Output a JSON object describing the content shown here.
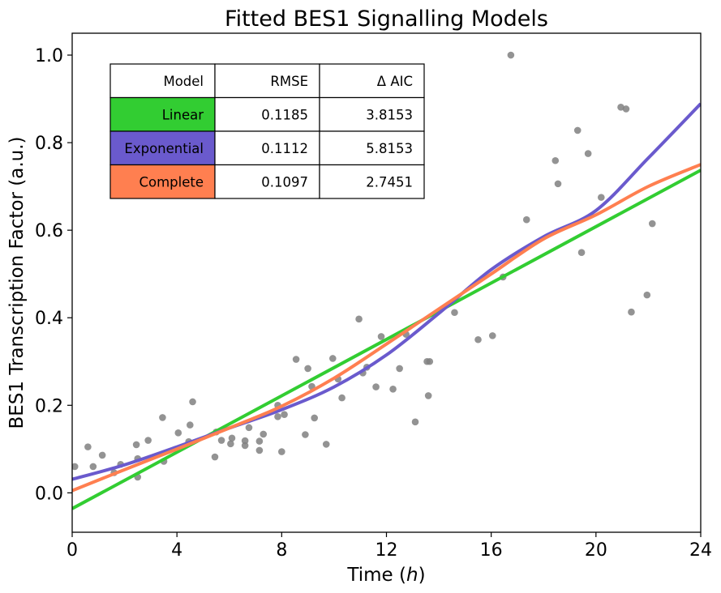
{
  "chart_data": {
    "type": "scatter",
    "title": "Fitted BES1 Signalling Models",
    "xlabel_main": "Time (",
    "xlabel_italic": "h",
    "xlabel_end": ")",
    "ylabel": "BES1 Transcription Factor (a.u.)",
    "xlim": [
      0,
      24
    ],
    "ylim": [
      -0.09,
      1.05
    ],
    "xticks": [
      0,
      4,
      8,
      12,
      16,
      20,
      24
    ],
    "yticks": [
      0.0,
      0.2,
      0.4,
      0.6,
      0.8,
      1.0
    ],
    "ytick_labels": [
      "0.0",
      "0.2",
      "0.4",
      "0.6",
      "0.8",
      "1.0"
    ],
    "grid": false,
    "colors": {
      "points": "#808080",
      "linear": "#32cd32",
      "exponential": "#6a5acd",
      "complete": "#ff7f50"
    },
    "scatter_points": {
      "x": [
        0.1,
        0.6,
        0.8,
        1.15,
        1.6,
        1.85,
        2.5,
        2.45,
        2.5,
        2.9,
        3.45,
        3.5,
        4.05,
        4.45,
        4.5,
        4.6,
        5.45,
        5.5,
        5.7,
        6.05,
        6.1,
        6.6,
        6.6,
        6.75,
        7.15,
        7.15,
        7.3,
        7.85,
        7.85,
        8.0,
        8.1,
        8.55,
        8.9,
        9.0,
        9.15,
        9.25,
        9.7,
        9.95,
        10.15,
        10.3,
        10.95,
        11.1,
        11.25,
        11.6,
        11.8,
        12.25,
        12.5,
        12.75,
        13.1,
        13.55,
        13.6,
        13.65,
        14.6,
        15.5,
        16.05,
        16.45,
        16.75,
        17.35,
        18.45,
        18.55,
        19.3,
        19.45,
        19.7,
        20.2,
        20.95,
        21.15,
        21.35,
        21.95,
        22.15
      ],
      "y": [
        0.06,
        0.105,
        0.06,
        0.086,
        0.046,
        0.065,
        0.036,
        0.11,
        0.078,
        0.12,
        0.172,
        0.072,
        0.137,
        0.117,
        0.155,
        0.208,
        0.082,
        0.139,
        0.12,
        0.112,
        0.125,
        0.119,
        0.108,
        0.149,
        0.118,
        0.097,
        0.134,
        0.2,
        0.174,
        0.094,
        0.179,
        0.305,
        0.133,
        0.284,
        0.243,
        0.171,
        0.111,
        0.307,
        0.26,
        0.217,
        0.397,
        0.274,
        0.287,
        0.242,
        0.357,
        0.237,
        0.284,
        0.362,
        0.162,
        0.3,
        0.222,
        0.3,
        0.412,
        0.35,
        0.359,
        0.493,
        1.0,
        0.624,
        0.759,
        0.706,
        0.828,
        0.549,
        0.775,
        0.675,
        0.881,
        0.877,
        0.413,
        0.452,
        0.615
      ]
    },
    "series": [
      {
        "name": "Linear",
        "x": [
          0,
          24
        ],
        "y": [
          -0.036,
          0.737
        ]
      },
      {
        "name": "Exponential",
        "x": [
          0,
          2,
          4,
          6,
          8,
          10,
          12,
          14,
          16,
          18,
          20,
          22,
          24
        ],
        "y": [
          0.031,
          0.064,
          0.105,
          0.148,
          0.19,
          0.242,
          0.315,
          0.41,
          0.51,
          0.585,
          0.645,
          0.765,
          0.889
        ]
      },
      {
        "name": "Complete",
        "x": [
          0,
          2,
          4,
          6,
          8,
          10,
          12,
          14,
          16,
          18,
          20,
          22,
          24
        ],
        "y": [
          0.005,
          0.053,
          0.1,
          0.148,
          0.198,
          0.262,
          0.34,
          0.42,
          0.5,
          0.58,
          0.635,
          0.7,
          0.75
        ]
      }
    ],
    "table": {
      "headers": [
        "Model",
        "RMSE",
        "Δ AIC"
      ],
      "rows": [
        {
          "model": "Linear",
          "rmse": "0.1185",
          "aic": "3.8153",
          "color": "#32cd32"
        },
        {
          "model": "Exponential",
          "rmse": "0.1112",
          "aic": "5.8153",
          "color": "#6a5acd"
        },
        {
          "model": "Complete",
          "rmse": "0.1097",
          "aic": "2.7451",
          "color": "#ff7f50"
        }
      ]
    }
  }
}
